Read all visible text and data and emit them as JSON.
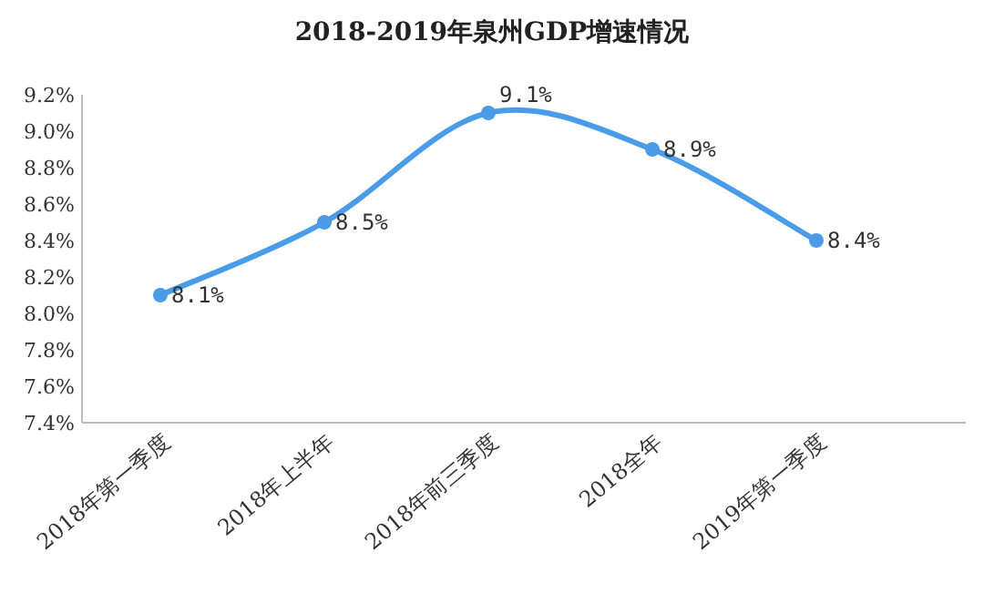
{
  "chart_data": {
    "type": "line",
    "title": "2018-2019年泉州GDP增速情况",
    "categories": [
      "2018年第一季度",
      "2018年上半年",
      "2018年前三季度",
      "2018全年",
      "2019年第一季度"
    ],
    "series": [
      {
        "color": "#4a9be8",
        "values": [
          8.1,
          8.5,
          9.1,
          8.9,
          8.4
        ],
        "value_labels": [
          "8.1%",
          "8.5%",
          "9.1%",
          "8.9%",
          "8.4%"
        ]
      }
    ],
    "ylim": [
      7.4,
      9.2
    ],
    "yticks": [
      {
        "value": 7.4,
        "label": "7.4%"
      },
      {
        "value": 7.6,
        "label": "7.6%"
      },
      {
        "value": 7.8,
        "label": "7.8%"
      },
      {
        "value": 8.0,
        "label": "8.0%"
      },
      {
        "value": 8.2,
        "label": "8.2%"
      },
      {
        "value": 8.4,
        "label": "8.4%"
      },
      {
        "value": 8.6,
        "label": "8.6%"
      },
      {
        "value": 8.8,
        "label": "8.8%"
      },
      {
        "value": 9.0,
        "label": "9.0%"
      },
      {
        "value": 9.2,
        "label": "9.2%"
      }
    ],
    "marker": "circle",
    "grid": false
  }
}
